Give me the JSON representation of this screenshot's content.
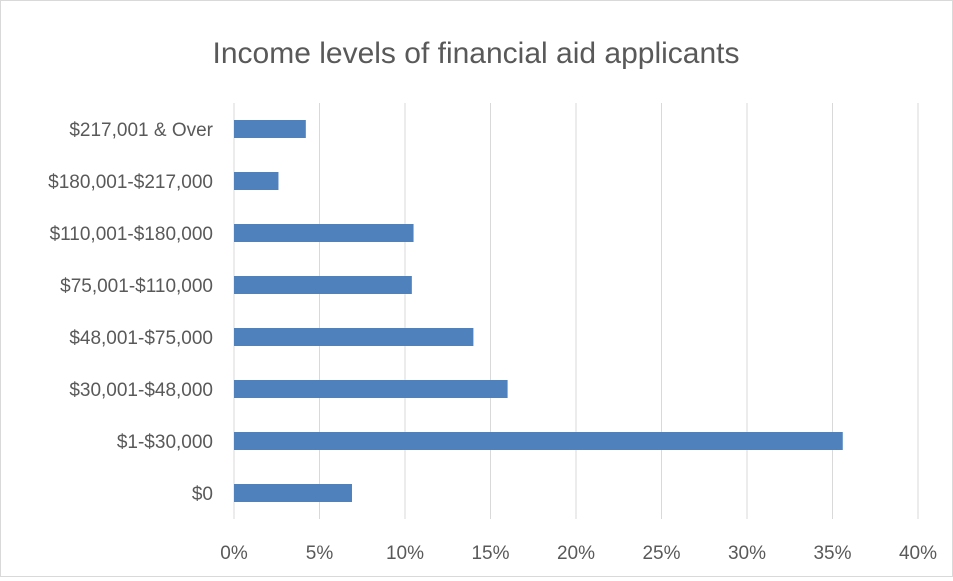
{
  "chart_data": {
    "type": "bar",
    "orientation": "horizontal",
    "title": "Income levels of financial aid applicants",
    "xlabel": "",
    "ylabel": "",
    "categories": [
      "$0",
      "$1-$30,000",
      "$30,001-$48,000",
      "$48,001-$75,000",
      "$75,001-$110,000",
      "$110,001-$180,000",
      "$180,001-$217,000",
      "$217,001 & Over"
    ],
    "values": [
      6.9,
      35.6,
      16.0,
      14.0,
      10.4,
      10.5,
      2.6,
      4.2
    ],
    "xlim": [
      0,
      40
    ],
    "x_ticks": [
      0,
      5,
      10,
      15,
      20,
      25,
      30,
      35,
      40
    ],
    "x_tick_labels": [
      "0%",
      "5%",
      "10%",
      "15%",
      "20%",
      "25%",
      "30%",
      "35%",
      "40%"
    ],
    "grid": true,
    "legend": "none",
    "bar_color": "#4f81bd",
    "grid_color": "#d9d9d9",
    "text_color": "#595959"
  }
}
